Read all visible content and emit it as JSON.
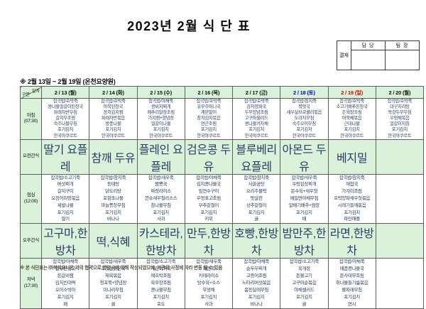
{
  "title": "2023년 2월 식 단 표",
  "subtitle": "※ 2월 13일 ~ 2월 19일 (온천요양원)",
  "approval": {
    "label": "결재",
    "columns": [
      "담 당",
      "팀 장"
    ]
  },
  "footnote": "※ 본 식단표는 ㈜복지유니온 과의 협약으로 영양사에 의해 작성되었으며, 기관의 사정에 따라 변동 될 수 있음",
  "colors": {
    "header_green": "#d9f2d9",
    "weekday_text": "#111111",
    "saturday_text": "#0000c8",
    "sunday_text": "#d40000",
    "menu_text": "#2a3c66"
  },
  "table": {
    "corner": {
      "top": "일자",
      "bottom": "구분"
    },
    "columns": [
      {
        "label": "2 / 13 (월)",
        "color": "#111111"
      },
      {
        "label": "2 / 14 (화)",
        "color": "#111111"
      },
      {
        "label": "2 / 15 (수)",
        "color": "#111111"
      },
      {
        "label": "2 / 16 (목)",
        "color": "#111111"
      },
      {
        "label": "2 / 17 (금)",
        "color": "#111111"
      },
      {
        "label": "2 / 18 (토)",
        "color": "#0000c8"
      },
      {
        "label": "2 / 19 (일)",
        "color": "#d40000"
      },
      {
        "label": "2 / 20 (월)",
        "color": "#111111"
      }
    ],
    "rows": [
      {
        "name": "breakfast",
        "label": "아침",
        "time": "(07:30)",
        "kind": "meal",
        "cells": [
          [
            "잡곡밥/호박죽",
            "콩나물얼갈이된장국",
            "파래자반무침",
            "갈치무조림",
            "숙주나물무침",
            "포기김치",
            "한국야쿠르트"
          ],
          [
            "잡곡밥/호박죽",
            "아욱된장국",
            "꽁치김치찜",
            "파래자반볶음",
            "방풍나물",
            "포기김치",
            "한국야쿠르트"
          ],
          [
            "잡곡밥/야채죽",
            "콩비지찌개",
            "메추리알장조림",
            "가지찜+양념장",
            "얼갈이나물",
            "포기김치",
            "한국야쿠르트"
          ],
          [
            "잡곡밥/호박죽",
            "유부주머니국",
            "계란말이",
            "참치김치볶음",
            "연근조림",
            "포기김치",
            "한국야쿠르트"
          ],
          [
            "잡곡밥/호박죽",
            "감자양파국",
            "두부양념조림",
            "고구마샐러드",
            "콩나물겨자채",
            "포기김치",
            "한국야쿠르트"
          ],
          [
            "잡곡밥/참치죽",
            "북엇국",
            "새우살브로콜리볶음",
            "도라지무침",
            "숙주오이무침",
            "포기김치",
            "한국야쿠르트"
          ],
          [
            "잡곡밥/호박죽",
            "소고기배추된장국",
            "돈육장조림",
            "어묵채볶음",
            "근대나물",
            "포기김치",
            "한국야쿠르트"
          ],
          [
            "잡곡밥/호박죽",
            "대구지리탕",
            "쑥갓두부무침",
            "우엉채볶음",
            "얼갈이지짐",
            "포기김치",
            "한국야쿠르트"
          ]
        ]
      },
      {
        "name": "morning-snack",
        "label": "오전간식",
        "time": "",
        "kind": "snack",
        "cells": [
          "딸기 요플레",
          "참깨 두유",
          "플레인 요플레",
          "검은콩 두유",
          "블루베리 요플레",
          "아몬드 두유",
          "베지밀",
          ""
        ]
      },
      {
        "name": "lunch",
        "label": "점심",
        "time": "(12:00)",
        "kind": "meal",
        "cells": [
          [
            "잡곡밥/소고기죽",
            "버섯찌개",
            "갈치구이",
            "오징어피망볶음",
            "세발나물",
            "포기김치",
            "딸기"
          ],
          [
            "잡곡밥/참치죽",
            "동태탕",
            "닭도리탕",
            "포항초나물",
            "마늘쫑장무침",
            "포기김치",
            "바나나"
          ],
          [
            "잡곡밥/새우죽",
            "짬뽕국",
            "짜장라이스",
            "깐쇼새우칠리소스",
            "참나물무침",
            "포기김치",
            "사과"
          ],
          [
            "잡곡밥/야채죽",
            "김치콩나물국",
            "임연수구이",
            "우엉표고조림",
            "부추겉절이",
            "포기김치",
            "키위"
          ],
          [
            "잡곡밥/참치죽",
            "사골곰탕",
            "오리주물럭",
            "맛살전",
            "상추겉절이",
            "포기김치",
            "귤"
          ],
          [
            "잡곡밥/새우죽",
            "우렁된장찌개",
            "돈수육+새우젓",
            "메밀면야채무침",
            "알배기배추+쌈장",
            "포기김치",
            "배"
          ],
          [
            "잡곡밥/참치죽",
            "재첩국",
            "가자미조림",
            "호박양파새우젓볶음",
            "시래기들깨볶음",
            "포기김치",
            "파인애플"
          ],
          []
        ]
      },
      {
        "name": "afternoon-snack",
        "label": "오후간식",
        "time": "",
        "kind": "snack",
        "cells": [
          "고구마,한방차",
          "떡,식혜",
          "카스테라,한방차",
          "만두,한방차",
          "호빵,한방차",
          "밤만주,한방차",
          "라면,한방차",
          ""
        ]
      },
      {
        "name": "dinner",
        "label": "저녁",
        "time": "(17:30)",
        "kind": "meal",
        "cells": [
          [
            "잡곡밥/야채죽",
            "열무된장국",
            "돈갈비찜",
            "김치빈대떡",
            "오이소박이",
            "포기김치",
            "배"
          ],
          [
            "잡곡밥/새우죽",
            "조갯살맑은국",
            "제육볶음",
            "청포묵+양념장",
            "미나리무침",
            "포기김치",
            "귤"
          ],
          [
            "잡곡밥/소고기죽",
            "계란미역국",
            "애호박조림",
            "육우장조림",
            "콩나물무침",
            "포기김치",
            "포도"
          ],
          [
            "잡곡밥/새우죽",
            "계란국",
            "카레라이스",
            "탕수육+소스",
            "무생채",
            "포기김치",
            "사과"
          ],
          [
            "잡곡밥/야채죽",
            "순두부찌개",
            "고등어조림",
            "느타리버섯볶음",
            "봄동달래무침",
            "포기김치",
            "바나나"
          ],
          [
            "잡곡밥/소고기죽",
            "육개장",
            "돈불고기",
            "고구마순볶음",
            "야채샐러드",
            "포기김치",
            "귤"
          ],
          [
            "잡곡밥/야채죽",
            "매콤콩나물국",
            "돈사태무조림",
            "취나물들기름볶음",
            "물파래무침",
            "포기김치",
            "연시"
          ],
          []
        ]
      }
    ]
  }
}
